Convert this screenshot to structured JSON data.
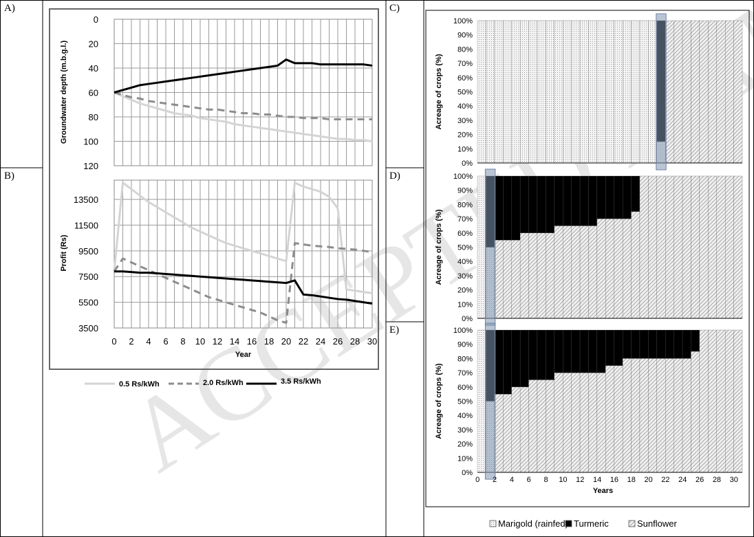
{
  "panel_labels": [
    "A)",
    "B)",
    "C)",
    "D)",
    "E)"
  ],
  "watermark": "ACCEPTED MANUSCRIPT",
  "colors": {
    "rs05": "#d4d4d4",
    "rs20": "#8c8c8c",
    "rs35": "#000000",
    "marigold": "#bdbdbd",
    "turmeric": "#000000",
    "sunflower": "#9e9e9e",
    "highlight": "#7f95b0"
  },
  "left_legend": [
    {
      "label": "0.5 Rs/kWh",
      "style": "solid-light"
    },
    {
      "label": "2.0 Rs/kWh",
      "style": "dashed-grey"
    },
    {
      "label": "3.5 Rs/kWh",
      "style": "solid-black"
    }
  ],
  "crop_legend": [
    {
      "label": "Marigold (rainfed)",
      "icon": "dotted-square-icon"
    },
    {
      "label": "Turmeric",
      "icon": "filled-square-icon"
    },
    {
      "label": "Sunflower",
      "icon": "hatched-square-icon"
    }
  ],
  "chart_data": [
    {
      "id": "A",
      "type": "line",
      "ylabel": "Groundwater depth (m.b.g.l.)",
      "ylim": [
        0,
        120
      ],
      "y_inverted": true,
      "y_ticks": [
        0,
        20,
        40,
        60,
        80,
        100,
        120
      ],
      "x": [
        0,
        1,
        2,
        3,
        4,
        5,
        6,
        7,
        8,
        9,
        10,
        11,
        12,
        13,
        14,
        15,
        16,
        17,
        18,
        19,
        20,
        21,
        22,
        23,
        24,
        25,
        26,
        27,
        28,
        29,
        30
      ],
      "series": [
        {
          "name": "0.5 Rs/kWh",
          "values": [
            60,
            63,
            66,
            69,
            71,
            73,
            75,
            77,
            78,
            79,
            81,
            82,
            83,
            84,
            86,
            87,
            88,
            89,
            90,
            91,
            92,
            93,
            94,
            95,
            96,
            97,
            98,
            98,
            99,
            99,
            100
          ]
        },
        {
          "name": "2.0 Rs/kWh",
          "values": [
            60,
            62,
            64,
            65,
            67,
            68,
            69,
            70,
            71,
            72,
            73,
            74,
            74,
            75,
            76,
            77,
            77,
            78,
            78,
            79,
            80,
            80,
            81,
            81,
            81,
            82,
            82,
            82,
            82,
            82,
            82
          ]
        },
        {
          "name": "3.5 Rs/kWh",
          "values": [
            60,
            58,
            56,
            54,
            53,
            52,
            51,
            50,
            49,
            48,
            47,
            46,
            45,
            44,
            43,
            42,
            41,
            40,
            39,
            38,
            33,
            36,
            36,
            36,
            37,
            37,
            37,
            37,
            37,
            37,
            38
          ]
        }
      ]
    },
    {
      "id": "B",
      "type": "line",
      "xlabel": "Year",
      "ylabel": "Profit (Rs)",
      "ylim": [
        3500,
        15000
      ],
      "y_ticks": [
        3500,
        5500,
        7500,
        9500,
        11500,
        13500
      ],
      "x_ticks": [
        0,
        2,
        4,
        6,
        8,
        10,
        12,
        14,
        16,
        18,
        20,
        22,
        24,
        26,
        28,
        30
      ],
      "x": [
        0,
        1,
        2,
        3,
        4,
        5,
        6,
        7,
        8,
        9,
        10,
        11,
        12,
        13,
        14,
        15,
        16,
        17,
        18,
        19,
        20,
        21,
        22,
        23,
        24,
        25,
        26,
        27,
        28,
        29,
        30
      ],
      "series": [
        {
          "name": "0.5 Rs/kWh",
          "values": [
            7900,
            14800,
            14300,
            13800,
            13300,
            12900,
            12500,
            12100,
            11700,
            11300,
            11000,
            10700,
            10400,
            10100,
            9900,
            9700,
            9500,
            9300,
            9100,
            8900,
            8700,
            14800,
            14500,
            14300,
            14100,
            13700,
            12800,
            6500,
            6400,
            6300,
            6200
          ]
        },
        {
          "name": "2.0 Rs/kWh",
          "values": [
            7900,
            8900,
            8600,
            8300,
            8000,
            7700,
            7400,
            7100,
            6800,
            6500,
            6200,
            5900,
            5700,
            5500,
            5300,
            5100,
            4900,
            4700,
            4400,
            4100,
            3900,
            10100,
            10000,
            9900,
            9850,
            9800,
            9700,
            9650,
            9600,
            9500,
            9400
          ]
        },
        {
          "name": "3.5 Rs/kWh",
          "values": [
            7900,
            7900,
            7850,
            7800,
            7800,
            7750,
            7700,
            7650,
            7600,
            7550,
            7500,
            7450,
            7400,
            7350,
            7300,
            7250,
            7200,
            7150,
            7100,
            7050,
            7000,
            7200,
            6100,
            6050,
            5950,
            5850,
            5750,
            5700,
            5600,
            5500,
            5400
          ]
        }
      ]
    },
    {
      "id": "C",
      "type": "bar",
      "ylabel": "Acreage of crops (%)",
      "y_ticks": [
        "0%",
        "10%",
        "20%",
        "30%",
        "40%",
        "50%",
        "60%",
        "70%",
        "80%",
        "90%",
        "100%"
      ],
      "x": [
        0,
        1,
        2,
        3,
        4,
        5,
        6,
        7,
        8,
        9,
        10,
        11,
        12,
        13,
        14,
        15,
        16,
        17,
        18,
        19,
        20,
        21,
        22,
        23,
        24,
        25,
        26,
        27,
        28,
        29,
        30
      ],
      "highlight_year": 21,
      "series": [
        {
          "name": "Marigold (rainfed)",
          "values": [
            100,
            100,
            100,
            100,
            100,
            100,
            100,
            100,
            100,
            100,
            100,
            100,
            100,
            100,
            100,
            100,
            100,
            100,
            100,
            100,
            100,
            15,
            0,
            0,
            0,
            0,
            0,
            0,
            0,
            0,
            0
          ]
        },
        {
          "name": "Turmeric",
          "values": [
            0,
            0,
            0,
            0,
            0,
            0,
            0,
            0,
            0,
            0,
            0,
            0,
            0,
            0,
            0,
            0,
            0,
            0,
            0,
            0,
            0,
            85,
            0,
            0,
            0,
            0,
            0,
            0,
            0,
            0,
            0
          ]
        },
        {
          "name": "Sunflower",
          "values": [
            0,
            0,
            0,
            0,
            0,
            0,
            0,
            0,
            0,
            0,
            0,
            0,
            0,
            0,
            0,
            0,
            0,
            0,
            0,
            0,
            0,
            0,
            100,
            100,
            100,
            100,
            100,
            100,
            100,
            100,
            100
          ]
        }
      ]
    },
    {
      "id": "D",
      "type": "bar",
      "ylabel": "Acreage of crops (%)",
      "y_ticks": [
        "0%",
        "10%",
        "20%",
        "30%",
        "40%",
        "50%",
        "60%",
        "70%",
        "80%",
        "90%",
        "100%"
      ],
      "x": [
        0,
        1,
        2,
        3,
        4,
        5,
        6,
        7,
        8,
        9,
        10,
        11,
        12,
        13,
        14,
        15,
        16,
        17,
        18,
        19,
        20,
        21,
        22,
        23,
        24,
        25,
        26,
        27,
        28,
        29,
        30
      ],
      "highlight_year": 1,
      "series": [
        {
          "name": "Marigold (rainfed)",
          "values": [
            100,
            50,
            0,
            0,
            0,
            0,
            0,
            0,
            0,
            0,
            0,
            0,
            0,
            0,
            0,
            0,
            0,
            0,
            0,
            0,
            0,
            0,
            0,
            0,
            0,
            0,
            0,
            0,
            0,
            0,
            0
          ]
        },
        {
          "name": "Turmeric",
          "values": [
            0,
            50,
            45,
            45,
            45,
            40,
            40,
            40,
            40,
            35,
            35,
            35,
            35,
            35,
            30,
            30,
            30,
            30,
            25,
            0,
            0,
            0,
            0,
            0,
            0,
            0,
            0,
            0,
            0,
            0,
            0
          ]
        },
        {
          "name": "Sunflower",
          "values": [
            0,
            0,
            55,
            55,
            55,
            60,
            60,
            60,
            60,
            65,
            65,
            65,
            65,
            65,
            70,
            70,
            70,
            70,
            75,
            100,
            100,
            100,
            100,
            100,
            100,
            100,
            100,
            100,
            100,
            100,
            100
          ]
        }
      ]
    },
    {
      "id": "E",
      "type": "bar",
      "xlabel": "Years",
      "ylabel": "Acreage of crops (%)",
      "y_ticks": [
        "0%",
        "10%",
        "20%",
        "30%",
        "40%",
        "50%",
        "60%",
        "70%",
        "80%",
        "90%",
        "100%"
      ],
      "x_ticks": [
        0,
        2,
        4,
        6,
        8,
        10,
        12,
        14,
        16,
        18,
        20,
        22,
        24,
        26,
        28,
        30
      ],
      "x": [
        0,
        1,
        2,
        3,
        4,
        5,
        6,
        7,
        8,
        9,
        10,
        11,
        12,
        13,
        14,
        15,
        16,
        17,
        18,
        19,
        20,
        21,
        22,
        23,
        24,
        25,
        26,
        27,
        28,
        29,
        30
      ],
      "highlight_year": 1,
      "series": [
        {
          "name": "Marigold (rainfed)",
          "values": [
            100,
            50,
            0,
            0,
            0,
            0,
            0,
            0,
            0,
            0,
            0,
            0,
            0,
            0,
            0,
            0,
            0,
            0,
            0,
            0,
            0,
            0,
            0,
            0,
            0,
            0,
            0,
            0,
            0,
            0,
            0
          ]
        },
        {
          "name": "Turmeric",
          "values": [
            0,
            50,
            45,
            45,
            40,
            40,
            35,
            35,
            35,
            30,
            30,
            30,
            30,
            30,
            30,
            25,
            25,
            20,
            20,
            20,
            20,
            20,
            20,
            20,
            20,
            15,
            0,
            0,
            0,
            0,
            0
          ]
        },
        {
          "name": "Sunflower",
          "values": [
            0,
            0,
            55,
            55,
            60,
            60,
            65,
            65,
            65,
            70,
            70,
            70,
            70,
            70,
            70,
            75,
            75,
            80,
            80,
            80,
            80,
            80,
            80,
            80,
            80,
            85,
            100,
            100,
            100,
            100,
            100
          ]
        }
      ]
    }
  ]
}
